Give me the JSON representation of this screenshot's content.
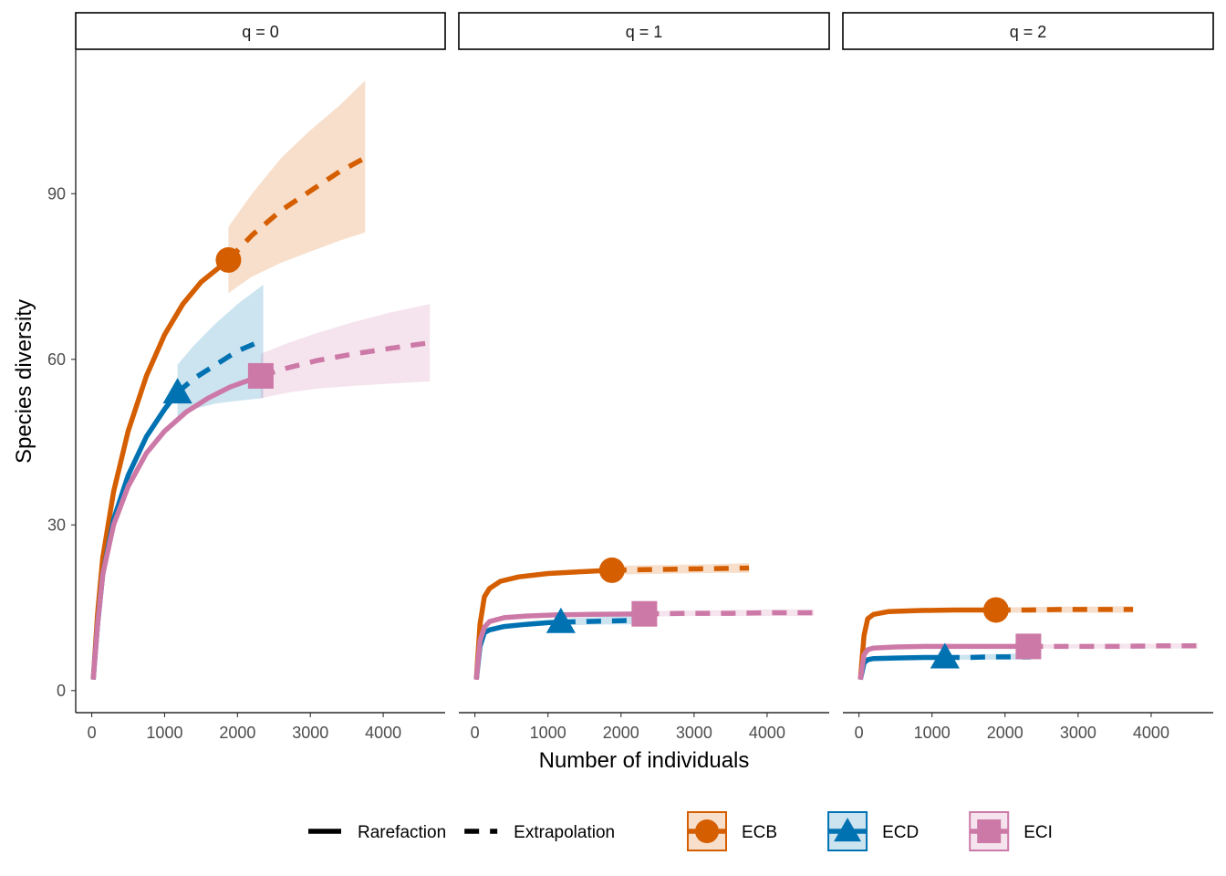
{
  "chart_data": {
    "type": "line",
    "xlabel": "Number of individuals",
    "ylabel": "Species diversity",
    "xlim": [
      -220,
      4850
    ],
    "ylim": [
      -4,
      116
    ],
    "x_ticks": [
      0,
      1000,
      2000,
      3000,
      4000
    ],
    "y_ticks": [
      0,
      30,
      60,
      90
    ],
    "grid": false,
    "legend_position": "bottom",
    "legend_linetype": [
      {
        "label": "Rarefaction",
        "style": "solid"
      },
      {
        "label": "Extrapolation",
        "style": "dashed"
      }
    ],
    "colors": {
      "ECB": "#D55E00",
      "ECD": "#0072B2",
      "ECI": "#CC79A7"
    },
    "series": [
      {
        "name": "ECB",
        "shape": "circle",
        "observed": {
          "x": 1876,
          "y": 78
        },
        "max_x": 3752
      },
      {
        "name": "ECD",
        "shape": "triangle",
        "observed": {
          "x": 1177,
          "y": 54
        },
        "max_x": 2354
      },
      {
        "name": "ECI",
        "shape": "square",
        "observed": {
          "x": 2320,
          "y": 57
        },
        "max_x": 4640
      }
    ],
    "panels": [
      {
        "label": "q = 0",
        "curves": [
          {
            "series": "ECB",
            "rarefaction": [
              [
                20,
                2
              ],
              [
                80,
                14
              ],
              [
                150,
                24
              ],
              [
                300,
                36
              ],
              [
                500,
                47
              ],
              [
                750,
                57
              ],
              [
                1000,
                64.5
              ],
              [
                1250,
                70
              ],
              [
                1500,
                74
              ],
              [
                1876,
                78
              ]
            ],
            "extrapolation": [
              [
                1876,
                78
              ],
              [
                2200,
                82.5
              ],
              [
                2600,
                87
              ],
              [
                3000,
                90.5
              ],
              [
                3400,
                94
              ],
              [
                3752,
                96.5
              ]
            ],
            "band_lower": [
              [
                1876,
                72
              ],
              [
                2200,
                75
              ],
              [
                2600,
                77.5
              ],
              [
                3000,
                79.5
              ],
              [
                3400,
                81.5
              ],
              [
                3752,
                83
              ]
            ],
            "band_upper": [
              [
                1876,
                84
              ],
              [
                2200,
                90
              ],
              [
                2600,
                96.5
              ],
              [
                3000,
                101.5
              ],
              [
                3400,
                106
              ],
              [
                3752,
                110.5
              ]
            ]
          },
          {
            "series": "ECD",
            "rarefaction": [
              [
                20,
                2
              ],
              [
                80,
                12
              ],
              [
                150,
                21
              ],
              [
                300,
                31
              ],
              [
                500,
                39
              ],
              [
                750,
                46
              ],
              [
                1000,
                51
              ],
              [
                1177,
                54
              ]
            ],
            "extrapolation": [
              [
                1177,
                54
              ],
              [
                1400,
                56.5
              ],
              [
                1700,
                59
              ],
              [
                2000,
                61.5
              ],
              [
                2354,
                63.5
              ]
            ],
            "band_lower": [
              [
                1177,
                49.5
              ],
              [
                1400,
                51
              ],
              [
                1700,
                52
              ],
              [
                2000,
                52.5
              ],
              [
                2354,
                53
              ]
            ],
            "band_upper": [
              [
                1177,
                59
              ],
              [
                1400,
                62.5
              ],
              [
                1700,
                66.5
              ],
              [
                2000,
                70
              ],
              [
                2354,
                73.5
              ]
            ]
          },
          {
            "series": "ECI",
            "rarefaction": [
              [
                20,
                2
              ],
              [
                80,
                12
              ],
              [
                150,
                21
              ],
              [
                300,
                30
              ],
              [
                500,
                37
              ],
              [
                750,
                43
              ],
              [
                1000,
                47
              ],
              [
                1300,
                50.5
              ],
              [
                1600,
                53
              ],
              [
                1900,
                55
              ],
              [
                2320,
                57
              ]
            ],
            "extrapolation": [
              [
                2320,
                57
              ],
              [
                2700,
                58.5
              ],
              [
                3100,
                59.8
              ],
              [
                3600,
                61
              ],
              [
                4100,
                62
              ],
              [
                4640,
                63
              ]
            ],
            "band_lower": [
              [
                2320,
                53
              ],
              [
                2700,
                54
              ],
              [
                3100,
                54.7
              ],
              [
                3600,
                55.2
              ],
              [
                4100,
                55.6
              ],
              [
                4640,
                56
              ]
            ],
            "band_upper": [
              [
                2320,
                61
              ],
              [
                2700,
                63
              ],
              [
                3100,
                64.8
              ],
              [
                3600,
                66.8
              ],
              [
                4100,
                68.5
              ],
              [
                4640,
                70
              ]
            ]
          }
        ]
      },
      {
        "label": "q = 1",
        "curves": [
          {
            "series": "ECB",
            "rarefaction": [
              [
                20,
                2
              ],
              [
                70,
                12
              ],
              [
                130,
                17
              ],
              [
                200,
                18.5
              ],
              [
                350,
                19.8
              ],
              [
                600,
                20.6
              ],
              [
                1000,
                21.2
              ],
              [
                1400,
                21.5
              ],
              [
                1876,
                21.8
              ]
            ],
            "extrapolation": [
              [
                1876,
                21.8
              ],
              [
                2300,
                21.9
              ],
              [
                2800,
                22.0
              ],
              [
                3300,
                22.1
              ],
              [
                3752,
                22.2
              ]
            ],
            "band_lower": [
              [
                1876,
                21
              ],
              [
                2300,
                21.1
              ],
              [
                2800,
                21.2
              ],
              [
                3300,
                21.3
              ],
              [
                3752,
                21.3
              ]
            ],
            "band_upper": [
              [
                1876,
                22.6
              ],
              [
                2300,
                22.7
              ],
              [
                2800,
                22.8
              ],
              [
                3300,
                22.9
              ],
              [
                3752,
                23.1
              ]
            ]
          },
          {
            "series": "ECD",
            "rarefaction": [
              [
                20,
                2
              ],
              [
                70,
                8
              ],
              [
                130,
                10.5
              ],
              [
                200,
                11
              ],
              [
                400,
                11.6
              ],
              [
                700,
                12.0
              ],
              [
                1000,
                12.3
              ],
              [
                1177,
                12.4
              ]
            ],
            "extrapolation": [
              [
                1177,
                12.4
              ],
              [
                1500,
                12.5
              ],
              [
                1800,
                12.6
              ],
              [
                2100,
                12.7
              ],
              [
                2354,
                12.8
              ]
            ],
            "band_lower": [
              [
                1177,
                11.8
              ],
              [
                1500,
                11.9
              ],
              [
                1800,
                12.0
              ],
              [
                2100,
                12.0
              ],
              [
                2354,
                12.0
              ]
            ],
            "band_upper": [
              [
                1177,
                13.0
              ],
              [
                1500,
                13.2
              ],
              [
                1800,
                13.4
              ],
              [
                2100,
                13.5
              ],
              [
                2354,
                13.6
              ]
            ]
          },
          {
            "series": "ECI",
            "rarefaction": [
              [
                20,
                2
              ],
              [
                70,
                9
              ],
              [
                130,
                11.5
              ],
              [
                200,
                12.5
              ],
              [
                400,
                13.2
              ],
              [
                700,
                13.5
              ],
              [
                1100,
                13.7
              ],
              [
                1600,
                13.8
              ],
              [
                2320,
                13.9
              ]
            ],
            "extrapolation": [
              [
                2320,
                13.9
              ],
              [
                2900,
                14.0
              ],
              [
                3500,
                14.0
              ],
              [
                4100,
                14.1
              ],
              [
                4640,
                14.1
              ]
            ],
            "band_lower": [
              [
                2320,
                13.4
              ],
              [
                2900,
                13.5
              ],
              [
                3500,
                13.5
              ],
              [
                4100,
                13.5
              ],
              [
                4640,
                13.5
              ]
            ],
            "band_upper": [
              [
                2320,
                14.4
              ],
              [
                2900,
                14.5
              ],
              [
                3500,
                14.6
              ],
              [
                4100,
                14.7
              ],
              [
                4640,
                14.7
              ]
            ]
          }
        ]
      },
      {
        "label": "q = 2",
        "curves": [
          {
            "series": "ECB",
            "rarefaction": [
              [
                20,
                2
              ],
              [
                70,
                10
              ],
              [
                120,
                13
              ],
              [
                200,
                13.8
              ],
              [
                400,
                14.3
              ],
              [
                800,
                14.5
              ],
              [
                1300,
                14.6
              ],
              [
                1876,
                14.6
              ]
            ],
            "extrapolation": [
              [
                1876,
                14.6
              ],
              [
                2300,
                14.6
              ],
              [
                2800,
                14.7
              ],
              [
                3300,
                14.7
              ],
              [
                3752,
                14.7
              ]
            ],
            "band_lower": [
              [
                1876,
                14.1
              ],
              [
                2300,
                14.1
              ],
              [
                2800,
                14.1
              ],
              [
                3300,
                14.1
              ],
              [
                3752,
                14.1
              ]
            ],
            "band_upper": [
              [
                1876,
                15.1
              ],
              [
                2300,
                15.1
              ],
              [
                2800,
                15.2
              ],
              [
                3300,
                15.2
              ],
              [
                3752,
                15.3
              ]
            ]
          },
          {
            "series": "ECD",
            "rarefaction": [
              [
                20,
                2
              ],
              [
                70,
                5
              ],
              [
                120,
                5.6
              ],
              [
                200,
                5.8
              ],
              [
                500,
                5.9
              ],
              [
                900,
                6.0
              ],
              [
                1177,
                6.0
              ]
            ],
            "extrapolation": [
              [
                1177,
                6.0
              ],
              [
                1500,
                6.0
              ],
              [
                1800,
                6.1
              ],
              [
                2100,
                6.1
              ],
              [
                2354,
                6.1
              ]
            ],
            "band_lower": [
              [
                1177,
                5.6
              ],
              [
                1500,
                5.6
              ],
              [
                1800,
                5.6
              ],
              [
                2100,
                5.6
              ],
              [
                2354,
                5.6
              ]
            ],
            "band_upper": [
              [
                1177,
                6.4
              ],
              [
                1500,
                6.5
              ],
              [
                1800,
                6.6
              ],
              [
                2100,
                6.7
              ],
              [
                2354,
                6.7
              ]
            ]
          },
          {
            "series": "ECI",
            "rarefaction": [
              [
                20,
                2
              ],
              [
                70,
                6.5
              ],
              [
                120,
                7.4
              ],
              [
                200,
                7.7
              ],
              [
                500,
                7.9
              ],
              [
                900,
                8.0
              ],
              [
                1500,
                8.0
              ],
              [
                2320,
                8.0
              ]
            ],
            "extrapolation": [
              [
                2320,
                8.0
              ],
              [
                2900,
                8.0
              ],
              [
                3500,
                8.0
              ],
              [
                4100,
                8.1
              ],
              [
                4640,
                8.1
              ]
            ],
            "band_lower": [
              [
                2320,
                7.6
              ],
              [
                2900,
                7.6
              ],
              [
                3500,
                7.6
              ],
              [
                4100,
                7.6
              ],
              [
                4640,
                7.6
              ]
            ],
            "band_upper": [
              [
                2320,
                8.4
              ],
              [
                2900,
                8.4
              ],
              [
                3500,
                8.5
              ],
              [
                4100,
                8.5
              ],
              [
                4640,
                8.6
              ]
            ]
          }
        ]
      }
    ]
  }
}
